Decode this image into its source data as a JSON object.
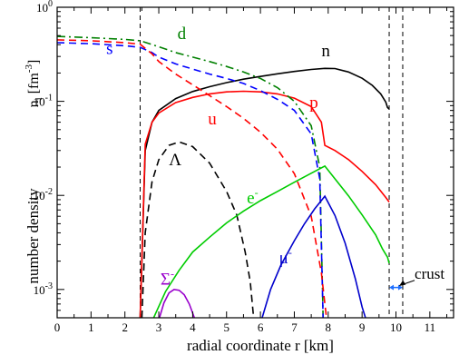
{
  "chart_data": {
    "type": "line",
    "xlabel": "radial coordinate  r [km]",
    "ylabel": "number density",
    "yunit_label": "n",
    "yunit_subscript": "i",
    "yunit_bracket": "[fm",
    "yunit_exp": "-3",
    "yunit_close": "]",
    "xlim": [
      0,
      11.7
    ],
    "ylim": [
      0.0005,
      1.0
    ],
    "yscale": "log",
    "grid": false,
    "x_ticks": [
      0,
      1,
      2,
      3,
      4,
      5,
      6,
      7,
      8,
      9,
      10,
      11
    ],
    "y_ticks": [
      {
        "value": 0.001,
        "base": "10",
        "exp": "-3"
      },
      {
        "value": 0.01,
        "base": "10",
        "exp": "-2"
      },
      {
        "value": 0.1,
        "base": "10",
        "exp": "-1"
      },
      {
        "value": 1.0,
        "base": "10",
        "exp": "0"
      }
    ],
    "vertical_dashed_lines_x": [
      2.45,
      9.8,
      10.2
    ],
    "series": [
      {
        "name": "n",
        "color": "#000000",
        "dash": "solid",
        "x": [
          2.45,
          2.6,
          2.8,
          3.0,
          3.5,
          4.0,
          4.5,
          5.0,
          5.5,
          6.0,
          6.5,
          7.0,
          7.5,
          7.9,
          8.2,
          8.6,
          9.0,
          9.3,
          9.55,
          9.7,
          9.75,
          9.8
        ],
        "y": [
          0.0005,
          0.03,
          0.06,
          0.08,
          0.107,
          0.127,
          0.143,
          0.158,
          0.172,
          0.184,
          0.196,
          0.208,
          0.218,
          0.224,
          0.223,
          0.205,
          0.176,
          0.148,
          0.12,
          0.098,
          0.086,
          0.083
        ]
      },
      {
        "name": "p",
        "color": "#ff0000",
        "dash": "solid",
        "x": [
          2.45,
          2.6,
          2.8,
          3.0,
          3.5,
          4.0,
          4.5,
          5.0,
          5.5,
          6.0,
          6.5,
          7.0,
          7.5,
          7.8,
          7.9,
          8.2,
          8.6,
          9.0,
          9.4,
          9.7,
          9.8
        ],
        "y": [
          0.0005,
          0.035,
          0.06,
          0.075,
          0.097,
          0.11,
          0.12,
          0.126,
          0.128,
          0.126,
          0.12,
          0.108,
          0.088,
          0.06,
          0.034,
          0.03,
          0.024,
          0.018,
          0.013,
          0.0095,
          0.0085
        ]
      },
      {
        "name": "d",
        "color": "#008000",
        "dash": "dashdot",
        "x": [
          0,
          1,
          2,
          2.45,
          3.0,
          3.5,
          4.0,
          4.5,
          5.0,
          5.5,
          6.0,
          6.5,
          7.0,
          7.5,
          7.75,
          7.85
        ],
        "y": [
          0.49,
          0.475,
          0.455,
          0.44,
          0.38,
          0.33,
          0.295,
          0.265,
          0.235,
          0.205,
          0.175,
          0.14,
          0.1,
          0.055,
          0.02,
          0.0005
        ]
      },
      {
        "name": "s",
        "color": "#0000ff",
        "dash": "dashed",
        "x": [
          0,
          1,
          2,
          2.45,
          2.8,
          3.0,
          3.5,
          4.0,
          4.5,
          5.0,
          5.5,
          6.0,
          6.5,
          7.0,
          7.5,
          7.75,
          7.85
        ],
        "y": [
          0.42,
          0.41,
          0.39,
          0.375,
          0.33,
          0.295,
          0.25,
          0.22,
          0.195,
          0.175,
          0.155,
          0.13,
          0.105,
          0.08,
          0.045,
          0.015,
          0.0005
        ]
      },
      {
        "name": "u",
        "color": "#ff0000",
        "dash": "dashed",
        "x": [
          0,
          1,
          2,
          2.45,
          2.8,
          3.0,
          3.5,
          4.0,
          4.5,
          5.0,
          5.5,
          6.0,
          6.5,
          7.0,
          7.5,
          7.8,
          7.95
        ],
        "y": [
          0.45,
          0.44,
          0.42,
          0.405,
          0.32,
          0.265,
          0.195,
          0.15,
          0.115,
          0.088,
          0.066,
          0.047,
          0.031,
          0.017,
          0.006,
          0.0015,
          0.0005
        ]
      },
      {
        "name": "Λ",
        "color": "#000000",
        "dash": "dashed",
        "x": [
          2.5,
          2.6,
          2.8,
          3.0,
          3.3,
          3.6,
          4.0,
          4.5,
          5.0,
          5.3,
          5.55,
          5.7,
          5.8
        ],
        "y": [
          0.0005,
          0.004,
          0.014,
          0.024,
          0.034,
          0.037,
          0.033,
          0.022,
          0.011,
          0.0062,
          0.0025,
          0.0012,
          0.0005
        ]
      },
      {
        "name": "e⁻",
        "color": "#00cc00",
        "dash": "solid",
        "x": [
          2.85,
          3.2,
          3.6,
          4.0,
          4.5,
          5.0,
          5.5,
          6.0,
          6.5,
          7.0,
          7.5,
          7.9,
          8.2,
          8.6,
          9.0,
          9.4,
          9.6,
          9.75,
          9.8
        ],
        "y": [
          0.0005,
          0.00095,
          0.0016,
          0.0025,
          0.0036,
          0.0051,
          0.0068,
          0.0088,
          0.011,
          0.0138,
          0.0172,
          0.0205,
          0.015,
          0.0099,
          0.0062,
          0.0038,
          0.0027,
          0.0022,
          0.0019
        ]
      },
      {
        "name": "μ⁻",
        "color": "#0000cc",
        "dash": "solid",
        "x": [
          6.05,
          6.3,
          6.6,
          7.0,
          7.3,
          7.6,
          7.9,
          8.2,
          8.5,
          8.8,
          9.0,
          9.1
        ],
        "y": [
          0.0005,
          0.001,
          0.0018,
          0.0033,
          0.005,
          0.0072,
          0.0098,
          0.0061,
          0.0031,
          0.0013,
          0.00065,
          0.0005
        ]
      },
      {
        "name": "Σ⁻",
        "color": "#9900cc",
        "dash": "solid",
        "x": [
          3.02,
          3.15,
          3.3,
          3.45,
          3.6,
          3.75,
          3.9,
          4.05
        ],
        "y": [
          0.0005,
          0.00072,
          0.00092,
          0.001,
          0.00098,
          0.00088,
          0.0007,
          0.0005
        ]
      }
    ],
    "labels": [
      {
        "text": "n",
        "color": "#000000",
        "x": 7.8,
        "y": 0.3
      },
      {
        "text": "p",
        "color": "#ff0000",
        "x": 7.45,
        "y": 0.085
      },
      {
        "text": "d",
        "color": "#008000",
        "x": 3.55,
        "y": 0.46
      },
      {
        "text": "s",
        "color": "#0000ff",
        "x": 1.45,
        "y": 0.32
      },
      {
        "text": "u",
        "color": "#ff0000",
        "x": 4.45,
        "y": 0.057
      },
      {
        "text": "Λ",
        "color": "#000000",
        "x": 3.3,
        "y": 0.021
      },
      {
        "text": "e",
        "sup": "-",
        "color": "#00cc00",
        "x": 5.6,
        "y": 0.0082
      },
      {
        "text": "μ",
        "sup": "-",
        "color": "#0000cc",
        "x": 6.55,
        "y": 0.0019
      },
      {
        "text": "Σ",
        "sup": "-",
        "color": "#9900cc",
        "x": 3.05,
        "y": 0.00113
      }
    ],
    "annotations": [
      {
        "text": "crust",
        "x": 10.55,
        "y": 0.0013
      }
    ]
  }
}
